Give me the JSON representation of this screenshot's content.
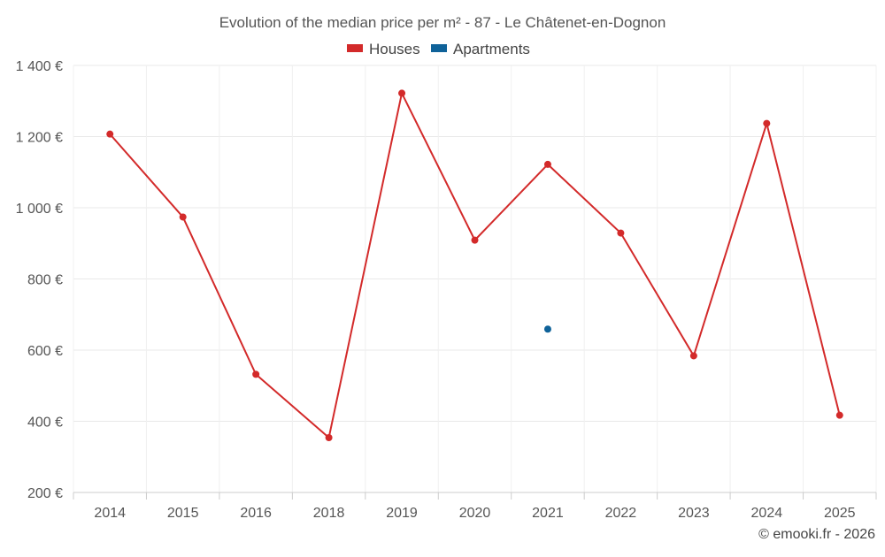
{
  "chart_data": {
    "type": "line",
    "title": "Evolution of the median price per m² - 87 - Le Châtenet-en-Dognon",
    "categories": [
      "2014",
      "2015",
      "2016",
      "2018",
      "2019",
      "2020",
      "2021",
      "2022",
      "2023",
      "2024",
      "2025"
    ],
    "series": [
      {
        "name": "Houses",
        "color": "#d32a2a",
        "values": [
          1207,
          974,
          532,
          354,
          1322,
          909,
          1122,
          929,
          584,
          1237,
          417
        ]
      },
      {
        "name": "Apartments",
        "color": "#0f6299",
        "values": [
          null,
          null,
          null,
          null,
          null,
          null,
          659,
          null,
          null,
          null,
          null
        ]
      }
    ],
    "ylim": [
      200,
      1400
    ],
    "yticks": [
      200,
      400,
      600,
      800,
      1000,
      1200,
      1400
    ],
    "ytick_labels": [
      "200 €",
      "400 €",
      "600 €",
      "800 €",
      "1 000 €",
      "1 200 €",
      "1 400 €"
    ],
    "xlabel": "",
    "ylabel": "",
    "grid": true,
    "legend_position": "top-center",
    "credit": "© emooki.fr - 2026"
  }
}
